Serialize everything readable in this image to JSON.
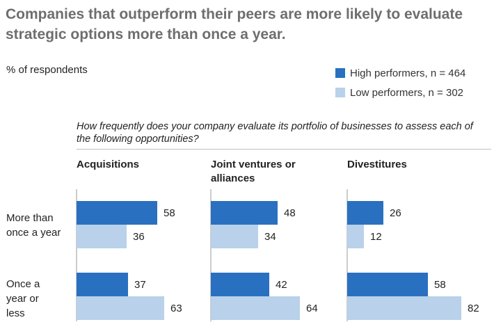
{
  "title": "Companies that outperform their peers are more likely to evaluate strategic options more than once a year.",
  "subtitle": "% of respondents",
  "colors": {
    "high": "#2a70c0",
    "low": "#b9d1ea",
    "axis": "#9a9a9a"
  },
  "legend": [
    {
      "key": "high",
      "label": "High performers,  n = 464"
    },
    {
      "key": "low",
      "label": "Low performers,  n = 302"
    }
  ],
  "question": "How frequently does your company evaluate its portfolio of businesses to assess each of the following opportunities?",
  "row_labels": [
    "More than once a year",
    "Once a year or less"
  ],
  "chart_data": {
    "type": "bar",
    "orientation": "horizontal",
    "title": "Companies that outperform their peers are more likely to evaluate strategic options more than once a year.",
    "ylabel": "% of respondents",
    "categories": [
      "More than once a year",
      "Once a year or less"
    ],
    "panels": [
      {
        "name": "Acquisitions",
        "series": [
          {
            "name": "High performers, n = 464",
            "values": [
              58,
              37
            ]
          },
          {
            "name": "Low performers, n = 302",
            "values": [
              36,
              63
            ]
          }
        ]
      },
      {
        "name": "Joint ventures or alliances",
        "series": [
          {
            "name": "High performers, n = 464",
            "values": [
              48,
              42
            ]
          },
          {
            "name": "Low performers, n = 302",
            "values": [
              34,
              64
            ]
          }
        ]
      },
      {
        "name": "Divestitures",
        "series": [
          {
            "name": "High performers, n = 464",
            "values": [
              26,
              58
            ]
          },
          {
            "name": "Low performers, n = 302",
            "values": [
              12,
              82
            ]
          }
        ]
      }
    ],
    "xlim": [
      0,
      100
    ]
  }
}
